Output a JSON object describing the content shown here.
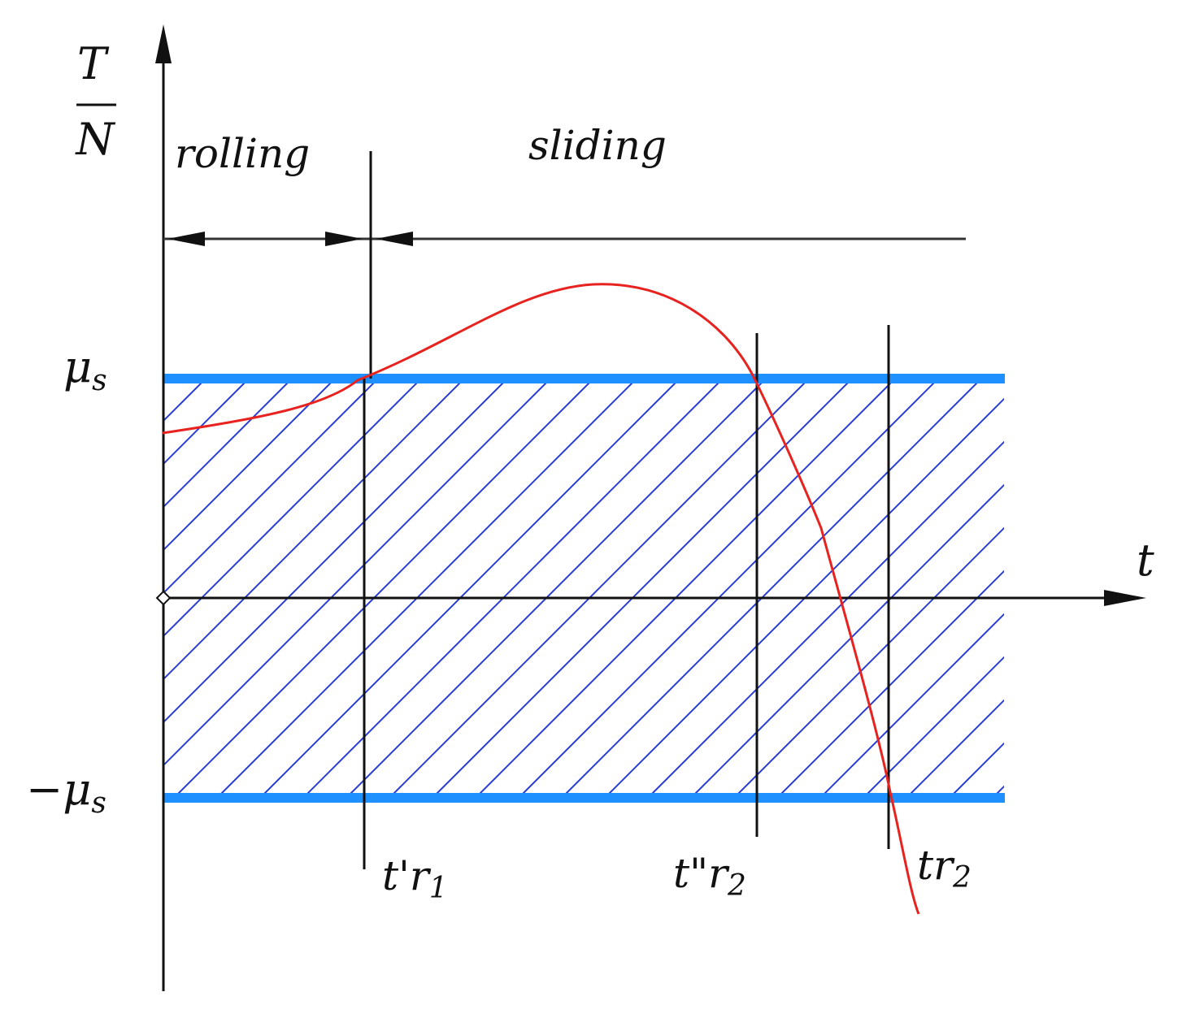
{
  "y_axis_label": {
    "numerator": "T",
    "denominator": "N"
  },
  "x_axis_label": "t",
  "regions": {
    "left": "rolling",
    "right": "sliding"
  },
  "bands": {
    "upper": {
      "main": "μ",
      "sub": "s"
    },
    "lower": {
      "main": "−μ",
      "sub": "s"
    }
  },
  "markers": [
    {
      "main": "t'r",
      "sub": "1"
    },
    {
      "main": "t\"r",
      "sub": "2"
    },
    {
      "main": "tr",
      "sub": "2"
    }
  ],
  "colors": {
    "band": "#1e90ff",
    "hatch": "#2a3cd6",
    "curve": "#e8231f",
    "ink": "#111111"
  }
}
